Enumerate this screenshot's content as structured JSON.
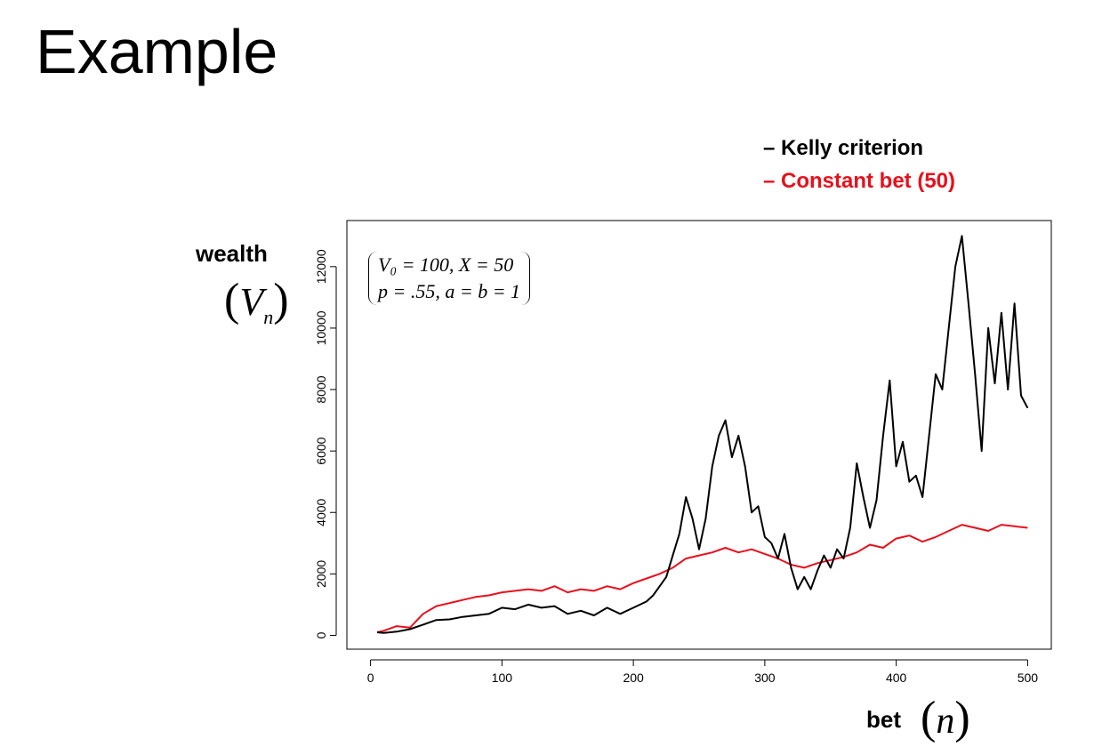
{
  "slide": {
    "title": "Example"
  },
  "legend": {
    "kelly": "– Kelly criterion",
    "constant": "– Constant bet (50)"
  },
  "labels": {
    "y_word": "wealth",
    "y_math": "V",
    "y_sub": "n",
    "x_word": "bet",
    "x_math": "n"
  },
  "annotation": {
    "line1": "V₀ = 100, X = 50",
    "line2": "p = .55, a = b = 1"
  },
  "chart_data": {
    "type": "line",
    "xlim": [
      -18,
      518
    ],
    "ylim": [
      -450,
      13500
    ],
    "xticks": [
      0,
      100,
      200,
      300,
      400,
      500
    ],
    "yticks": [
      0,
      2000,
      4000,
      6000,
      8000,
      10000,
      12000
    ],
    "grid": false,
    "legend_position": "top-right, outside plot",
    "series": [
      {
        "name": "Kelly criterion",
        "color": "#000000",
        "x": [
          5,
          10,
          20,
          30,
          40,
          50,
          60,
          70,
          80,
          90,
          100,
          110,
          120,
          130,
          140,
          150,
          160,
          170,
          180,
          190,
          200,
          210,
          215,
          220,
          225,
          230,
          235,
          240,
          245,
          250,
          255,
          260,
          265,
          270,
          275,
          280,
          285,
          290,
          295,
          300,
          305,
          310,
          315,
          320,
          325,
          330,
          335,
          340,
          345,
          350,
          355,
          360,
          365,
          370,
          375,
          380,
          385,
          390,
          395,
          400,
          405,
          410,
          415,
          420,
          425,
          430,
          435,
          440,
          445,
          450,
          455,
          460,
          465,
          470,
          475,
          480,
          485,
          490,
          495,
          500
        ],
        "values": [
          100,
          80,
          120,
          200,
          350,
          500,
          520,
          600,
          650,
          700,
          900,
          850,
          1000,
          900,
          950,
          700,
          800,
          650,
          900,
          700,
          900,
          1100,
          1300,
          1600,
          1900,
          2600,
          3300,
          4500,
          3800,
          2800,
          3800,
          5500,
          6500,
          7000,
          5800,
          6500,
          5500,
          4000,
          4200,
          3200,
          3000,
          2500,
          3300,
          2200,
          1500,
          1900,
          1500,
          2100,
          2600,
          2200,
          2800,
          2500,
          3500,
          5600,
          4500,
          3500,
          4400,
          6500,
          8300,
          5500,
          6300,
          5000,
          5200,
          4500,
          6500,
          8500,
          8000,
          10000,
          12000,
          13000,
          10800,
          8500,
          6000,
          10000,
          8200,
          10500,
          8000,
          10800,
          7800,
          7400
        ]
      },
      {
        "name": "Constant bet (50)",
        "color": "#e8101c",
        "x": [
          5,
          10,
          20,
          30,
          40,
          50,
          60,
          70,
          80,
          90,
          100,
          110,
          120,
          130,
          140,
          150,
          160,
          170,
          180,
          190,
          200,
          210,
          220,
          230,
          240,
          250,
          260,
          270,
          280,
          290,
          300,
          310,
          320,
          330,
          340,
          350,
          360,
          370,
          380,
          390,
          400,
          410,
          420,
          430,
          440,
          450,
          460,
          470,
          480,
          490,
          500
        ],
        "values": [
          100,
          150,
          300,
          250,
          700,
          950,
          1050,
          1150,
          1250,
          1300,
          1400,
          1450,
          1500,
          1450,
          1600,
          1400,
          1500,
          1450,
          1600,
          1500,
          1700,
          1850,
          2000,
          2200,
          2500,
          2600,
          2700,
          2850,
          2700,
          2800,
          2650,
          2500,
          2300,
          2200,
          2350,
          2450,
          2550,
          2700,
          2950,
          2850,
          3150,
          3250,
          3050,
          3200,
          3400,
          3600,
          3500,
          3400,
          3600,
          3550,
          3500
        ]
      }
    ]
  }
}
